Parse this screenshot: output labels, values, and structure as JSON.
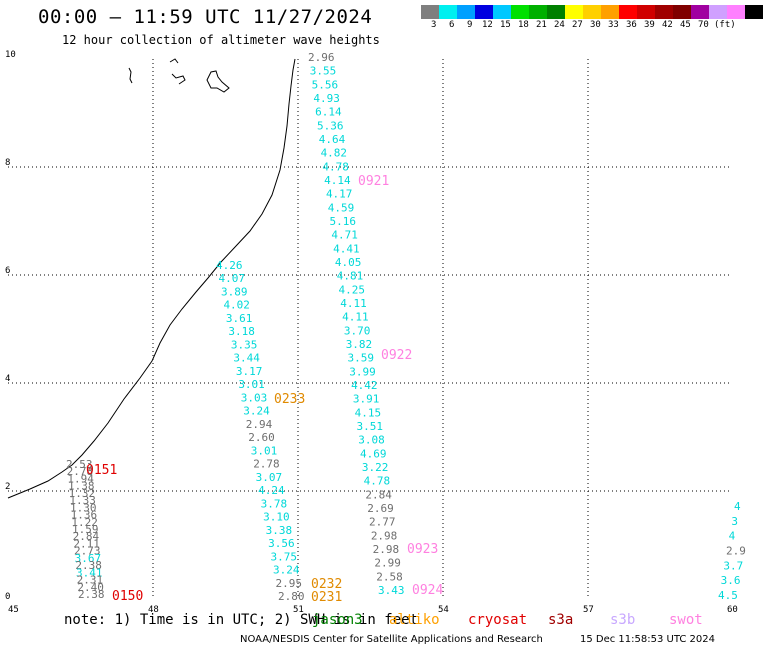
{
  "title": "00:00 – 11:59 UTC 11/27/2024",
  "subtitle": "12 hour collection of altimeter wave heights",
  "color_scale": {
    "unit": "(ft)",
    "colors": [
      "#7f7f7f",
      "#00f0f0",
      "#00a0ff",
      "#0000e0",
      "#00c8ff",
      "#00e000",
      "#00b000",
      "#008000",
      "#ffff00",
      "#ffd000",
      "#ffa000",
      "#ff0000",
      "#d00000",
      "#a00000",
      "#800000",
      "#a000a0",
      "#d0a0ff",
      "#ff80ff",
      "#000000"
    ],
    "labels": [
      "3",
      "6",
      "9",
      "12",
      "15",
      "18",
      "21",
      "24",
      "27",
      "30",
      "33",
      "36",
      "39",
      "42",
      "45",
      "70"
    ]
  },
  "map": {
    "lon_ticks": [
      "45",
      "48",
      "51",
      "54",
      "57",
      "60"
    ],
    "lat_ticks": [
      "0",
      "2",
      "4",
      "6",
      "8",
      "10"
    ]
  },
  "passes": [
    {
      "label": "0150",
      "color": "#e00000"
    },
    {
      "label": "0151",
      "color": "#e00000"
    },
    {
      "label": "0233",
      "color": "#e08a00"
    },
    {
      "label": "0232",
      "color": "#e08a00"
    },
    {
      "label": "0231",
      "color": "#e08a00"
    },
    {
      "label": "0921",
      "color": "#ff80e0"
    },
    {
      "label": "0922",
      "color": "#ff80e0"
    },
    {
      "label": "0923",
      "color": "#ff80e0"
    },
    {
      "label": "0924",
      "color": "#ff80e0"
    }
  ],
  "tracks": {
    "t1": [
      "2.53",
      "2.78",
      "1.94",
      "1.38",
      "1.32",
      "1.33",
      "1.30",
      "1.36",
      "1.22",
      "1.59",
      "2.84",
      "2.11",
      "2.73",
      "3.67",
      "2.38",
      "3.41",
      "2.31",
      "2.40",
      "2.38"
    ],
    "t2": [
      "4.26",
      "4.07",
      "3.89",
      "4.02",
      "3.61",
      "3.18",
      "3.35",
      "3.44",
      "3.17",
      "3.01",
      "3.03",
      "3.24",
      "2.94",
      "2.60",
      "3.01",
      "2.78",
      "3.07",
      "4.24",
      "3.78",
      "3.10",
      "3.38",
      "3.56",
      "3.75",
      "3.24",
      "2.95",
      "2.80"
    ],
    "t3": [
      "2.96",
      "3.55",
      "5.56",
      "4.93",
      "6.14",
      "5.36",
      "4.64",
      "4.82",
      "4.78",
      "4.14",
      "4.17",
      "4.59",
      "5.16",
      "4.71",
      "4.41",
      "4.05",
      "4.81",
      "4.25",
      "4.11",
      "4.11",
      "3.70",
      "3.82",
      "3.59",
      "3.99",
      "4.42",
      "3.91",
      "4.15",
      "3.51",
      "3.08",
      "4.69",
      "3.22",
      "4.78",
      "2.84",
      "2.69",
      "2.77",
      "2.98",
      "2.98",
      "2.99",
      "2.58",
      "3.43"
    ],
    "t4": [
      "4",
      "3",
      "4",
      "2.9",
      "3.7",
      "3.6",
      "4.5"
    ]
  },
  "legend": {
    "note": "note: 1) Time is in UTC; 2) SWH is in feet",
    "satellites": [
      {
        "name": "jason3",
        "color": "#008000"
      },
      {
        "name": "altiko",
        "color": "#ffa000"
      },
      {
        "name": "cryosat",
        "color": "#e00000"
      },
      {
        "name": "s3a",
        "color": "#a00000"
      },
      {
        "name": "s3b",
        "color": "#c8a8ff"
      },
      {
        "name": "swot",
        "color": "#ff80e0"
      }
    ]
  },
  "credit": "NOAA/NESDIS Center for Satellite Applications and Research",
  "timestamp": "15 Dec 11:58:53 UTC 2024"
}
